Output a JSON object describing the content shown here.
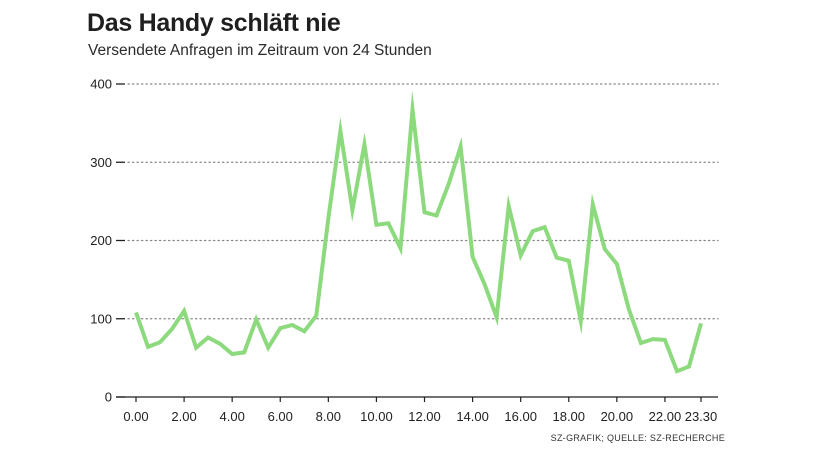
{
  "header": {
    "title": "Das Handy schläft nie",
    "subtitle": "Versendete Anfragen im Zeitraum von 24 Stunden"
  },
  "footer": {
    "source": "SZ-GRAFIK; QUELLE: SZ-RECHERCHE"
  },
  "colors": {
    "line": "#8dda7e",
    "grid": "#888888",
    "axis": "#1f1f1f"
  },
  "chart_data": {
    "type": "line",
    "title": "Das Handy schläft nie",
    "subtitle": "Versendete Anfragen im Zeitraum von 24 Stunden",
    "xlabel": "",
    "ylabel": "",
    "xlim": [
      0,
      23.5
    ],
    "ylim": [
      0,
      400
    ],
    "grid": true,
    "y_ticks": [
      0,
      100,
      200,
      300,
      400
    ],
    "y_tick_labels": [
      "0",
      "100",
      "200",
      "300",
      "400"
    ],
    "x_ticks": [
      0,
      2,
      4,
      6,
      8,
      10,
      12,
      14,
      16,
      18,
      20,
      22,
      23.5
    ],
    "x_tick_labels": [
      "0.00",
      "2.00",
      "4.00",
      "6.00",
      "8.00",
      "10.00",
      "12.00",
      "14.00",
      "16.00",
      "18.00",
      "20.00",
      "22.00",
      "23.30"
    ],
    "series": [
      {
        "name": "Versendete Anfragen",
        "x": [
          0,
          0.5,
          1,
          1.5,
          2,
          2.5,
          3,
          3.5,
          4,
          4.5,
          5,
          5.5,
          6,
          6.5,
          7,
          7.5,
          8,
          8.5,
          9,
          9.5,
          10,
          10.5,
          11,
          11.5,
          12,
          12.5,
          13,
          13.5,
          14,
          14.5,
          15,
          15.5,
          16,
          16.5,
          17,
          17.5,
          18,
          18.5,
          19,
          19.5,
          20,
          20.5,
          21,
          21.5,
          22,
          22.5,
          23,
          23.5
        ],
        "values": [
          108,
          64,
          70,
          87,
          110,
          63,
          76,
          68,
          55,
          57,
          99,
          63,
          88,
          92,
          84,
          104,
          228,
          340,
          239,
          323,
          220,
          222,
          190,
          367,
          236,
          232,
          272,
          320,
          179,
          144,
          102,
          244,
          181,
          212,
          217,
          178,
          174,
          97,
          246,
          189,
          170,
          112,
          69,
          74,
          73,
          33,
          39,
          94
        ]
      }
    ]
  }
}
